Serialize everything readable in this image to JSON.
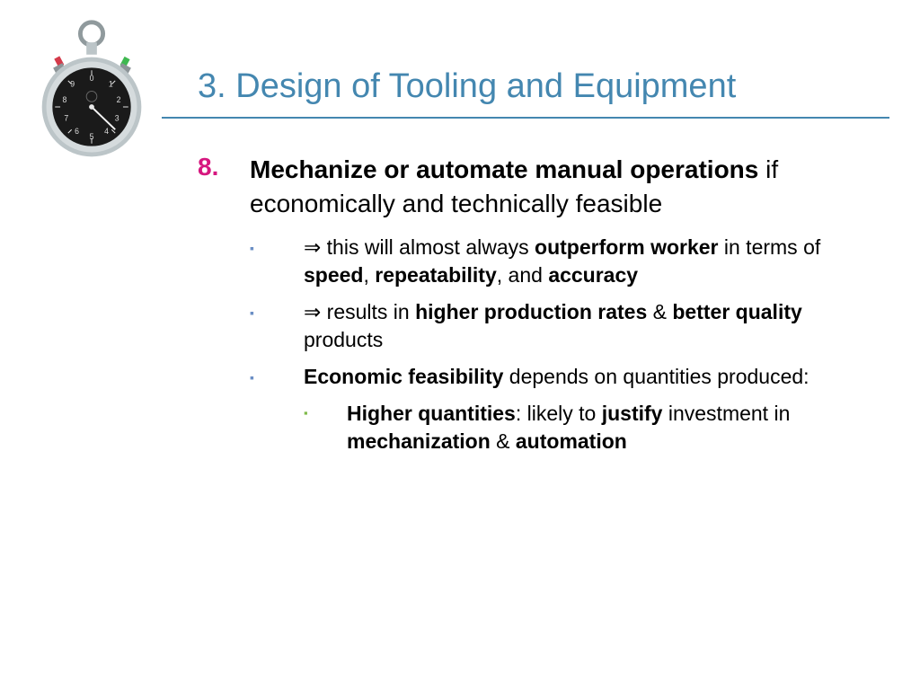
{
  "colors": {
    "title": "#4487b0",
    "underline": "#4487b0",
    "number": "#d6177f",
    "body": "#000000",
    "bullet1": "#6b8fc5",
    "bullet2": "#7fba4a",
    "watch_body": "#bcc5c8",
    "watch_face": "#1a1a1a",
    "watch_ring": "#909a9d",
    "btn_red": "#d43a4a",
    "btn_green": "#3fb850"
  },
  "title": "3. Design of Tooling and Equipment",
  "main": {
    "number": "8.",
    "bold": "Mechanize or automate manual operations",
    "rest": " if economically and technically feasible"
  },
  "sub": [
    {
      "arrow": "⇒ ",
      "segments": [
        {
          "t": "this will almost always ",
          "b": false
        },
        {
          "t": "outperform worker",
          "b": true
        },
        {
          "t": " in terms of ",
          "b": false
        },
        {
          "t": "speed",
          "b": true
        },
        {
          "t": ", ",
          "b": false
        },
        {
          "t": "repeatability",
          "b": true
        },
        {
          "t": ", and ",
          "b": false
        },
        {
          "t": "accuracy",
          "b": true
        }
      ]
    },
    {
      "arrow": "⇒ ",
      "segments": [
        {
          "t": "results in ",
          "b": false
        },
        {
          "t": "higher production rates",
          "b": true
        },
        {
          "t": " & ",
          "b": false
        },
        {
          "t": "better quality",
          "b": true
        },
        {
          "t": " products",
          "b": false
        }
      ]
    },
    {
      "arrow": "",
      "segments": [
        {
          "t": "Economic feasibility",
          "b": true
        },
        {
          "t": " depends on quantities produced:",
          "b": false
        }
      ]
    }
  ],
  "subsub": [
    {
      "segments": [
        {
          "t": "Higher quantities",
          "b": true
        },
        {
          "t": ": likely to ",
          "b": false
        },
        {
          "t": "justify",
          "b": true
        },
        {
          "t": " investment in ",
          "b": false
        },
        {
          "t": "mechanization",
          "b": true
        },
        {
          "t": " & ",
          "b": false
        },
        {
          "t": "automation",
          "b": true
        }
      ]
    }
  ],
  "bullet_glyph": "▪"
}
